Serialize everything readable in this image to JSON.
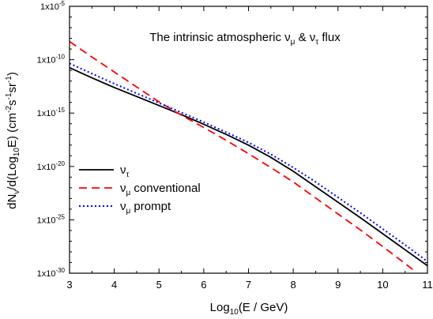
{
  "chart_data": {
    "type": "line",
    "title": {
      "text": "The intrinsic atmospheric ν",
      "sub1": "μ",
      "mid": " & ν",
      "sub2": "τ",
      "tail": " flux"
    },
    "xlabel": {
      "pre": "Log",
      "sub": "10",
      "post": "(E / GeV)"
    },
    "ylabel": {
      "p1": "dN",
      "s1": "ν",
      "p2": "/d(Log",
      "s2": "10",
      "p3": "E) (cm",
      "e1": "-2",
      "p4": "s",
      "e2": "-1",
      "p5": "sr",
      "e3": "-1",
      "p6": ")"
    },
    "xlim": [
      3,
      11
    ],
    "ylim_log10": [
      -30,
      -5
    ],
    "x_ticks": [
      3,
      4,
      5,
      6,
      7,
      8,
      9,
      10,
      11
    ],
    "y_ticks": [
      {
        "exp": -5,
        "base": "1x10",
        "sup": "-5"
      },
      {
        "exp": -10,
        "base": "1x10",
        "sup": "-10"
      },
      {
        "exp": -15,
        "base": "1x10",
        "sup": "-15"
      },
      {
        "exp": -20,
        "base": "1x10",
        "sup": "-20"
      },
      {
        "exp": -25,
        "base": "1x10",
        "sup": "-25"
      },
      {
        "exp": -30,
        "base": "1x10",
        "sup": "-30"
      }
    ],
    "legend_placement": "lower-left",
    "series": [
      {
        "name": {
          "main": "ν",
          "sub": "τ",
          "rest": ""
        },
        "color": "#000000",
        "style": "solid",
        "x": [
          3.0,
          3.5,
          4.0,
          4.5,
          5.0,
          5.5,
          6.0,
          6.5,
          7.0,
          7.5,
          8.0,
          8.5,
          9.0,
          9.5,
          10.0,
          10.5,
          11.0
        ],
        "log10_y": [
          -10.75,
          -11.7,
          -12.6,
          -13.45,
          -14.3,
          -15.15,
          -16.05,
          -17.0,
          -18.0,
          -19.15,
          -20.45,
          -21.9,
          -23.35,
          -24.8,
          -26.3,
          -27.8,
          -29.3
        ]
      },
      {
        "name": {
          "main": "ν",
          "sub": "μ",
          "rest": " conventional"
        },
        "color": "#ff0000",
        "style": "dashed",
        "x": [
          3.0,
          3.5,
          4.0,
          4.5,
          5.0,
          5.5,
          6.0,
          6.5,
          7.0,
          7.5,
          8.0,
          8.5,
          9.0,
          9.5,
          10.0,
          10.5,
          10.7
        ],
        "log10_y": [
          -8.3,
          -9.75,
          -11.15,
          -12.55,
          -13.95,
          -15.2,
          -16.35,
          -17.55,
          -18.8,
          -20.1,
          -21.45,
          -22.95,
          -24.45,
          -25.95,
          -27.5,
          -29.1,
          -29.75
        ]
      },
      {
        "name": {
          "main": "ν",
          "sub": "μ",
          "rest": " prompt"
        },
        "color": "#0000ff",
        "style": "dotted",
        "x": [
          3.0,
          3.5,
          4.0,
          4.5,
          5.0,
          5.5,
          6.0,
          6.5,
          7.0,
          7.5,
          8.0,
          8.5,
          9.0,
          9.5,
          10.0,
          10.5,
          11.0
        ],
        "log10_y": [
          -10.35,
          -11.3,
          -12.25,
          -13.15,
          -14.05,
          -14.95,
          -15.85,
          -16.8,
          -17.75,
          -18.85,
          -20.1,
          -21.45,
          -22.9,
          -24.35,
          -25.85,
          -27.35,
          -28.9
        ]
      }
    ]
  }
}
